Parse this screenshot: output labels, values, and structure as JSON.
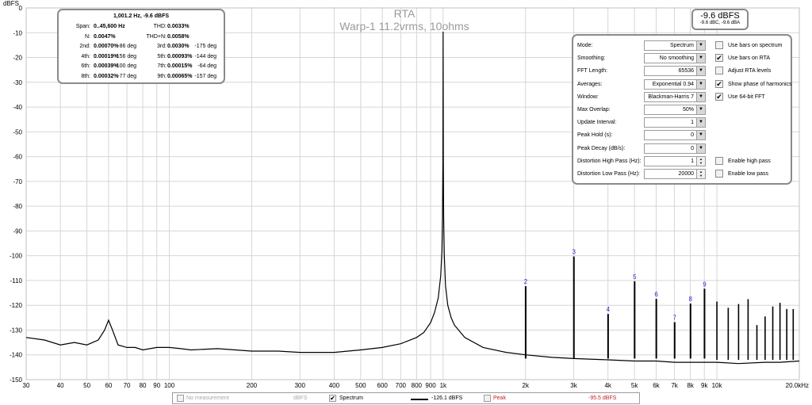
{
  "chart_data": {
    "type": "line",
    "title": "RTA",
    "subtitle": "Warp-1 11.2vrms, 10ohms",
    "y_unit_label": "dBFS",
    "x_scale": "log",
    "xlim": [
      30,
      20000
    ],
    "ylim": [
      -150,
      0
    ],
    "grid": true,
    "y_ticks": [
      0,
      -10,
      -20,
      -30,
      -40,
      -50,
      -60,
      -70,
      -80,
      -90,
      -100,
      -110,
      -120,
      -130,
      -140,
      -150
    ],
    "y_tick_labels": [
      "0",
      "-10",
      "-20",
      "-30",
      "-40",
      "-50",
      "-60",
      "-70",
      "-80",
      "-90",
      "-100",
      "-110",
      "-120",
      "-130",
      "-140",
      "-150"
    ],
    "x_ticks": [
      30,
      40,
      50,
      60,
      70,
      80,
      90,
      100,
      200,
      300,
      400,
      500,
      600,
      700,
      800,
      900,
      1000,
      2000,
      3000,
      4000,
      5000,
      6000,
      7000,
      8000,
      9000,
      10000,
      20000
    ],
    "x_tick_labels": [
      "30",
      "40",
      "50",
      "60",
      "70",
      "80",
      "90",
      "100",
      "200",
      "300",
      "400",
      "500",
      "600",
      "700",
      "800",
      "900",
      "1k",
      "2k",
      "3k",
      "4k",
      "5k",
      "6k",
      "7k",
      "8k",
      "9k",
      "10k",
      "20.0kHz"
    ],
    "series": [
      {
        "name": "Spectrum",
        "color": "#000000",
        "x": [
          30,
          35,
          40,
          45,
          50,
          55,
          58,
          60,
          62,
          65,
          70,
          75,
          80,
          90,
          100,
          110,
          120,
          150,
          200,
          250,
          300,
          400,
          500,
          600,
          700,
          800,
          850,
          900,
          930,
          960,
          980,
          990,
          995,
          998,
          1000,
          1002,
          1005,
          1010,
          1020,
          1040,
          1070,
          1100,
          1200,
          1400,
          1700,
          2000,
          2500,
          3000,
          4000,
          5000,
          6000,
          7000,
          8000,
          10000,
          12000,
          15000,
          17000,
          20000
        ],
        "y": [
          -133,
          -134,
          -136,
          -135,
          -136,
          -134,
          -130,
          -126,
          -130,
          -136,
          -137,
          -137,
          -138,
          -137,
          -137,
          -137.5,
          -138,
          -137.5,
          -138.5,
          -138.5,
          -139,
          -139,
          -138,
          -137,
          -135.5,
          -133,
          -131,
          -127,
          -123,
          -117,
          -108,
          -98,
          -85,
          -62,
          -9.6,
          -62,
          -85,
          -100,
          -112,
          -120,
          -125,
          -128,
          -133,
          -137,
          -139,
          -140,
          -141,
          -141.5,
          -142,
          -142.5,
          -142.5,
          -143,
          -143,
          -143,
          -143.5,
          -143,
          -143,
          -142.5
        ]
      }
    ],
    "harmonics": [
      {
        "label": "2",
        "x": 2002.4,
        "y": -112.3
      },
      {
        "label": "3",
        "x": 3003.6,
        "y": -100.3
      },
      {
        "label": "4",
        "x": 4004.8,
        "y": -123.5
      },
      {
        "label": "5",
        "x": 5006.0,
        "y": -110.3
      },
      {
        "label": "6",
        "x": 6007.2,
        "y": -117.4
      },
      {
        "label": "7",
        "x": 7008.4,
        "y": -126.8
      },
      {
        "label": "8",
        "x": 8009.6,
        "y": -119.3
      },
      {
        "label": "9",
        "x": 9010.8,
        "y": -113.3
      }
    ],
    "extra_harmonics": [
      {
        "x": 10000,
        "y": -118.5
      },
      {
        "x": 11000,
        "y": -121
      },
      {
        "x": 12000,
        "y": -119.5
      },
      {
        "x": 13000,
        "y": -117.5
      },
      {
        "x": 14000,
        "y": -128
      },
      {
        "x": 15000,
        "y": -124.5
      },
      {
        "x": 16000,
        "y": -120.5
      },
      {
        "x": 17000,
        "y": -119
      },
      {
        "x": 18000,
        "y": -121.5
      },
      {
        "x": 19000,
        "y": -121.5
      }
    ]
  },
  "distortion": {
    "header": "1,001.2 Hz, -9.6 dBFS",
    "rows": [
      {
        "l1": "Span:",
        "v1": "0..45,600 Hz",
        "p1": "",
        "l2": "THD:",
        "v2": "0.0033%",
        "p2": ""
      },
      {
        "l1": "N:",
        "v1": "0.0047%",
        "p1": "",
        "l2": "THD+N:",
        "v2": "0.0058%",
        "p2": ""
      },
      {
        "l1": "2nd:",
        "v1": "0.00070%",
        "p1": "-86 deg",
        "l2": "3rd:",
        "v2": "0.0030%",
        "p2": "-175 deg"
      },
      {
        "l1": "4th:",
        "v1": "0.00019%",
        "p1": "-156 deg",
        "l2": "5th:",
        "v2": "0.00093%",
        "p2": "-144 deg"
      },
      {
        "l1": "6th:",
        "v1": "0.00039%",
        "p1": "-100 deg",
        "l2": "7th:",
        "v2": "0.00015%",
        "p2": "-64 deg"
      },
      {
        "l1": "8th:",
        "v1": "0.00032%",
        "p1": "-77 deg",
        "l2": "9th:",
        "v2": "0.00065%",
        "p2": "-157 deg"
      }
    ]
  },
  "level": {
    "main": "-9.6 dBFS",
    "sub": "-9.6 dBC, -9.6 dBA"
  },
  "controls": [
    {
      "label": "Mode:",
      "value": "Spectrum",
      "kind": "select",
      "cb_label": "Use bars on spectrum",
      "cb_checked": false
    },
    {
      "label": "Smoothing:",
      "value": "No  smoothing",
      "kind": "select",
      "cb_label": "Use bars on RTA",
      "cb_checked": true
    },
    {
      "label": "FFT Length:",
      "value": "65536",
      "kind": "select",
      "cb_label": "Adjust RTA levels",
      "cb_checked": false
    },
    {
      "label": "Averages:",
      "value": "Exponential 0.94",
      "kind": "select",
      "cb_label": "Show phase of harmonics",
      "cb_checked": true
    },
    {
      "label": "Window:",
      "value": "Blackman-Harris 7",
      "kind": "select",
      "cb_label": "Use 64-bit FFT",
      "cb_checked": true
    },
    {
      "label": "Max Overlap:",
      "value": "50%",
      "kind": "select",
      "cb_label": "",
      "cb_checked": false
    },
    {
      "label": "Update Interval:",
      "value": "1",
      "kind": "select",
      "cb_label": "",
      "cb_checked": false
    },
    {
      "label": "Peak Hold (s):",
      "value": "0",
      "kind": "select",
      "cb_label": "",
      "cb_checked": false
    },
    {
      "label": "Peak Decay (dB/s):",
      "value": "0",
      "kind": "select",
      "cb_label": "",
      "cb_checked": false
    },
    {
      "label": "Distortion High Pass (Hz):",
      "value": "1",
      "kind": "spin",
      "cb_label": "Enable high pass",
      "cb_checked": false
    },
    {
      "label": "Distortion Low Pass (Hz):",
      "value": "20000",
      "kind": "spin",
      "cb_label": "Enable low pass",
      "cb_checked": false
    }
  ],
  "legend": {
    "no_measurement": "No measurement",
    "no_measurement_unit": "dBFS",
    "spectrum_label": "Spectrum",
    "spectrum_value": "-126.1 dBFS",
    "peak_label": "Peak",
    "peak_value": "-95.5 dBFS",
    "peak_color": "#c82020"
  }
}
